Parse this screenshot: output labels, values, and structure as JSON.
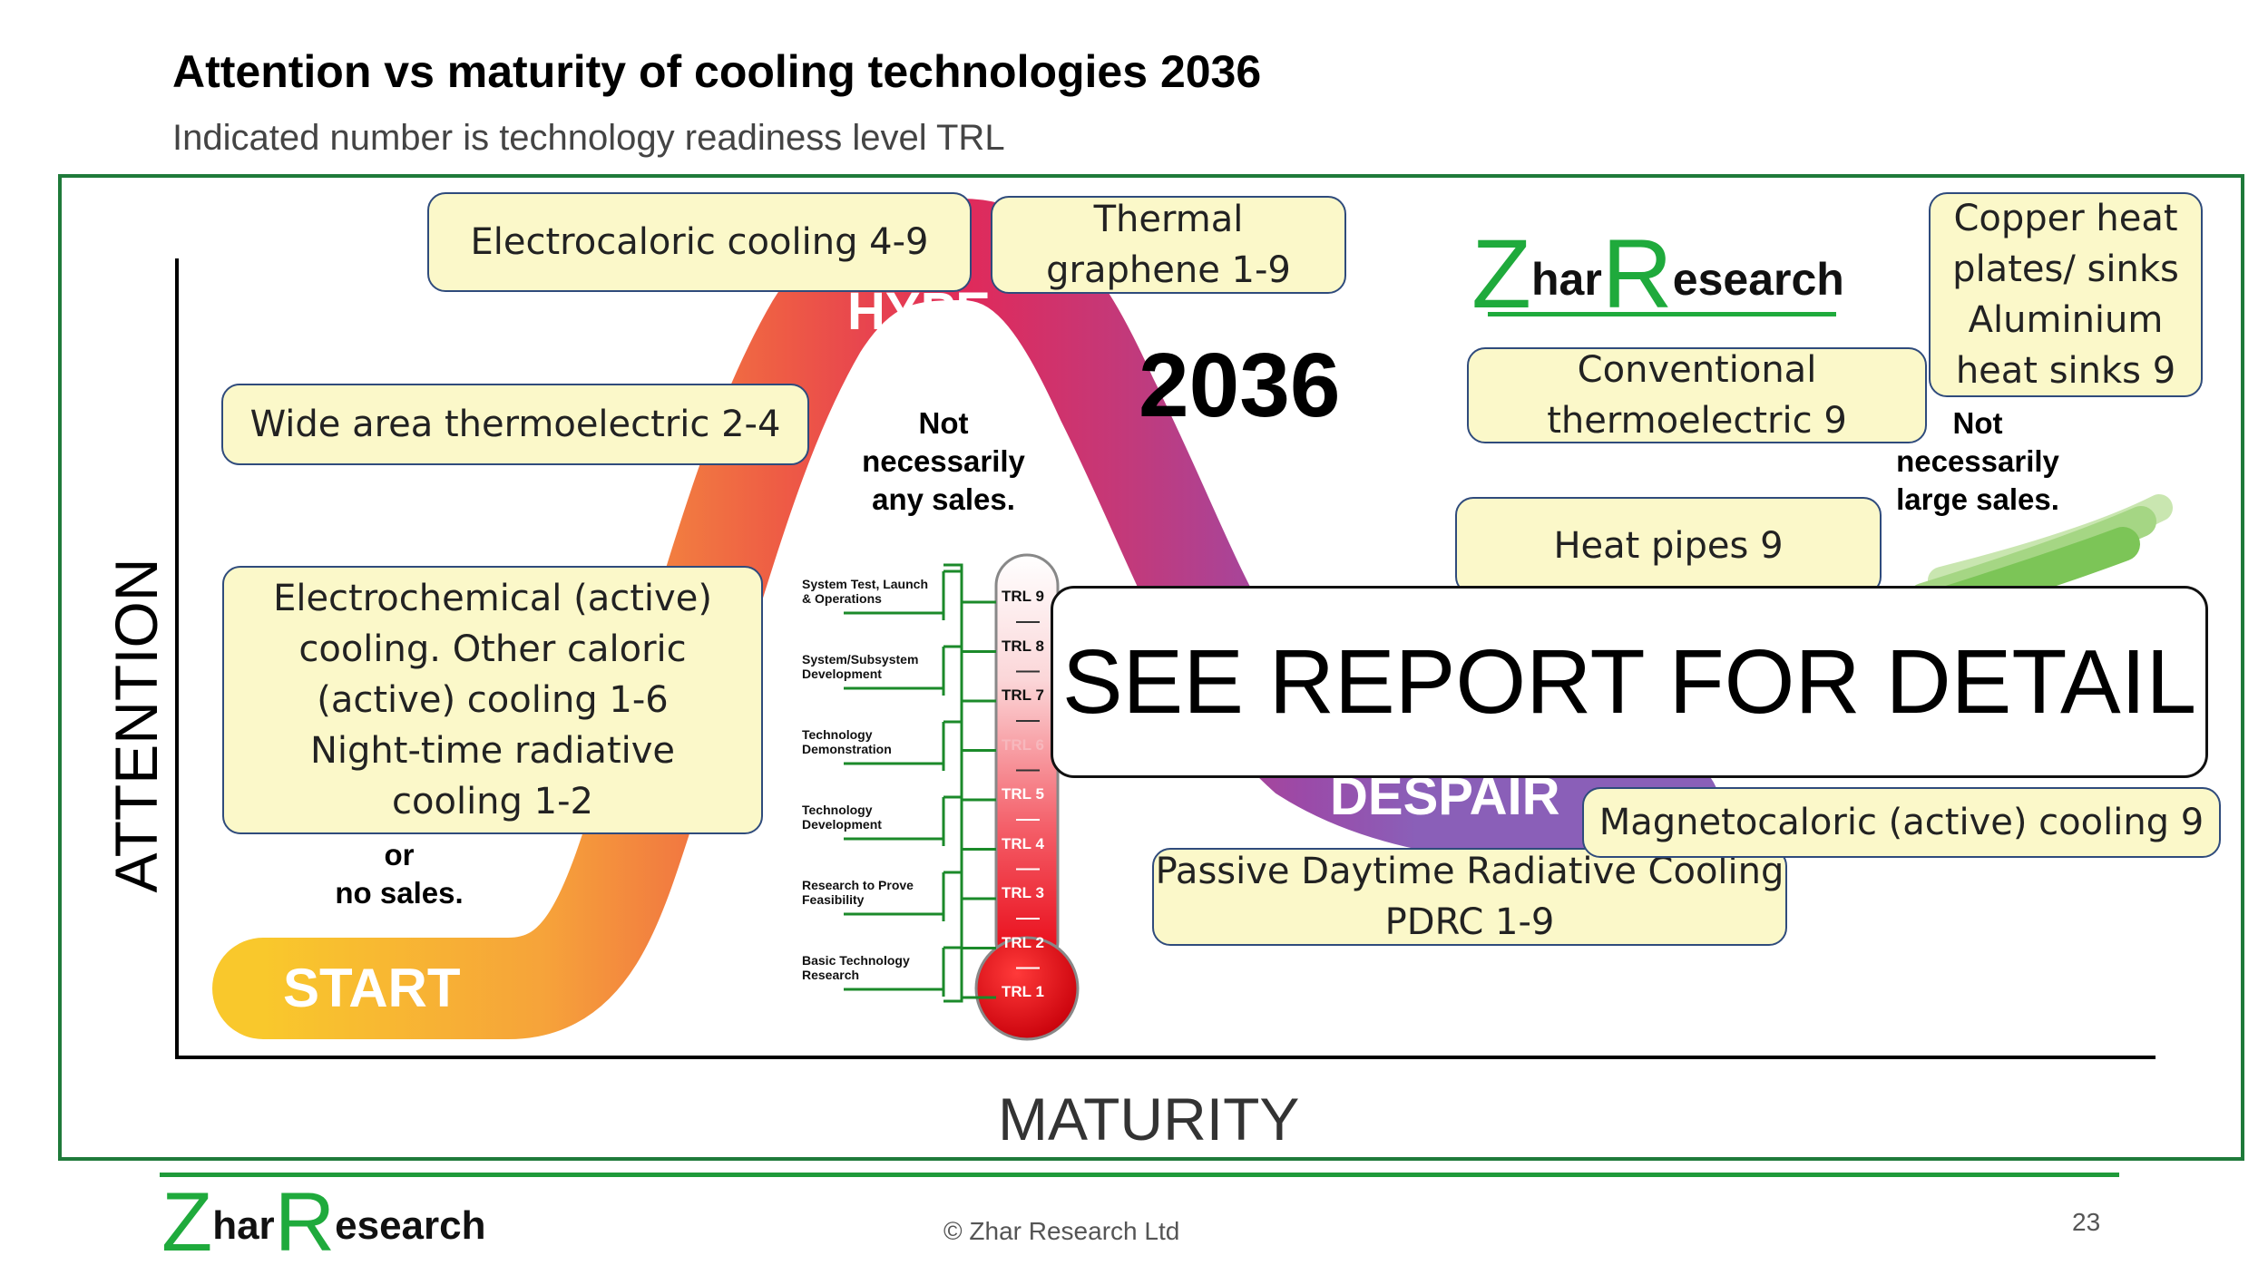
{
  "header": {
    "title": "Attention vs maturity of cooling technologies 2036",
    "subtitle": "Indicated number is technology readiness level TRL"
  },
  "diagram": {
    "year": "2036",
    "stages": {
      "start": "START",
      "hype": "HYPE",
      "despair": "DESPAIR"
    },
    "axes": {
      "y": "ATTENTION",
      "x": "MATURITY"
    },
    "notes": {
      "hype": "Not\nnecessarily\nany sales.",
      "start": "or\nno sales.",
      "late": "Not\nnecessarily\nlarge sales."
    },
    "technologies": [
      {
        "label": "Electrocaloric cooling 4-9"
      },
      {
        "label": "Thermal\ngraphene 1-9"
      },
      {
        "label": "Wide area thermoelectric 2-4"
      },
      {
        "label": "Electrochemical (active)\ncooling. Other caloric\n(active) cooling 1-6\nNight-time radiative\ncooling 1-2"
      },
      {
        "label": "Conventional\nthermoelectric 9"
      },
      {
        "label": "Copper heat\nplates/ sinks\nAluminium\nheat sinks 9"
      },
      {
        "label": "Heat pipes 9"
      },
      {
        "label": "Magnetocaloric (active) cooling 9"
      },
      {
        "label": "Passive Daytime Radiative Cooling\nPDRC 1-9"
      }
    ],
    "overlay": "SEE REPORT FOR DETAIL",
    "trl_scale": {
      "levels": [
        "TRL 9",
        "TRL 8",
        "TRL 7",
        "TRL 6",
        "TRL 5",
        "TRL 4",
        "TRL 3",
        "TRL 2",
        "TRL 1"
      ],
      "stages": [
        "System Test, Launch\n& Operations",
        "System/Subsystem\nDevelopment",
        "Technology\nDemonstration",
        "Technology\nDevelopment",
        "Research to Prove\nFeasibility",
        "Basic Technology\nResearch"
      ]
    }
  },
  "logo": {
    "z": "Z",
    "har": "har",
    "r": "R",
    "esearch": "esearch"
  },
  "footer": {
    "copyright": "© Zhar Research Ltd",
    "page": "23"
  },
  "colors": {
    "frame": "#1f7a3a",
    "accent": "#1faa3c",
    "box_fill": "#fbf8c9",
    "box_border": "#2f4b7c"
  }
}
